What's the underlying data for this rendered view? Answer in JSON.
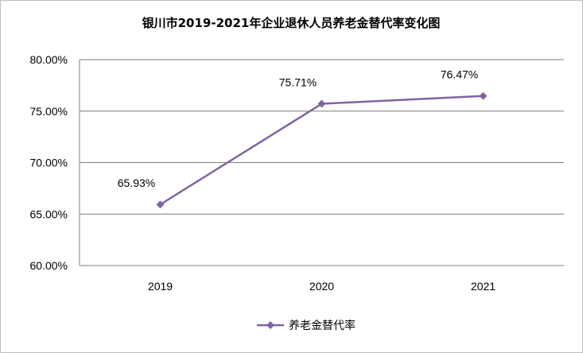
{
  "chart_data": {
    "type": "line",
    "title": "银川市2019-2021年企业退休人员养老金替代率变化图",
    "categories": [
      "2019",
      "2020",
      "2021"
    ],
    "series": [
      {
        "name": "养老金替代率",
        "values": [
          65.93,
          75.71,
          76.47
        ],
        "labels": [
          "65.93%",
          "75.71%",
          "76.47%"
        ],
        "color": "#8064A2"
      }
    ],
    "ylim": [
      60,
      80
    ],
    "yticks": [
      "60.00%",
      "65.00%",
      "70.00%",
      "75.00%",
      "80.00%"
    ],
    "ytick_values": [
      60,
      65,
      70,
      75,
      80
    ],
    "grid": true,
    "legend_position": "bottom",
    "colors": {
      "gridline": "#7f7f7f",
      "axis": "#7f7f7f",
      "frame": "#bfbfbf"
    }
  }
}
